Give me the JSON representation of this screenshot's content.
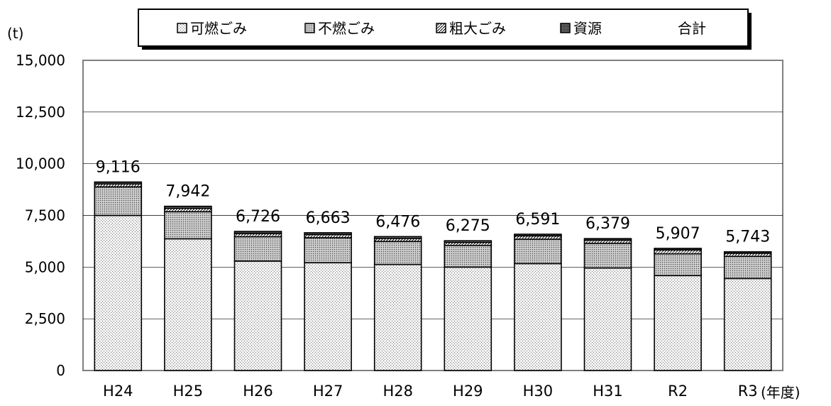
{
  "chart_data": {
    "type": "bar",
    "stacked": true,
    "categories": [
      "H24",
      "H25",
      "H26",
      "H27",
      "H28",
      "H29",
      "H30",
      "H31",
      "R2",
      "R3"
    ],
    "series": [
      {
        "name": "可燃ごみ",
        "values": [
          7500,
          6370,
          5290,
          5210,
          5130,
          5000,
          5170,
          4960,
          4590,
          4450
        ]
      },
      {
        "name": "不燃ごみ",
        "values": [
          1380,
          1310,
          1180,
          1210,
          1110,
          1050,
          1180,
          1190,
          1050,
          1070
        ]
      },
      {
        "name": "粗大ごみ",
        "values": [
          140,
          160,
          150,
          150,
          150,
          140,
          160,
          150,
          190,
          150
        ]
      },
      {
        "name": "資源",
        "values": [
          96,
          102,
          106,
          93,
          86,
          85,
          81,
          79,
          77,
          73
        ]
      }
    ],
    "totals": {
      "name": "合計",
      "values": [
        "9,116",
        "7,942",
        "6,726",
        "6,663",
        "6,476",
        "6,275",
        "6,591",
        "6,379",
        "5,907",
        "5,743"
      ]
    },
    "y_unit": "(t)",
    "x_unit": "(年度)",
    "ylim": [
      0,
      15000
    ],
    "yticks": [
      "0",
      "2,500",
      "5,000",
      "7,500",
      "10,000",
      "12,500",
      "15,000"
    ],
    "grid": true,
    "legend_position": "top",
    "colors": {
      "bar_fill": "#e4e4e4",
      "stroke": "#000000",
      "frame": "#808080",
      "grid": "#000000"
    }
  }
}
